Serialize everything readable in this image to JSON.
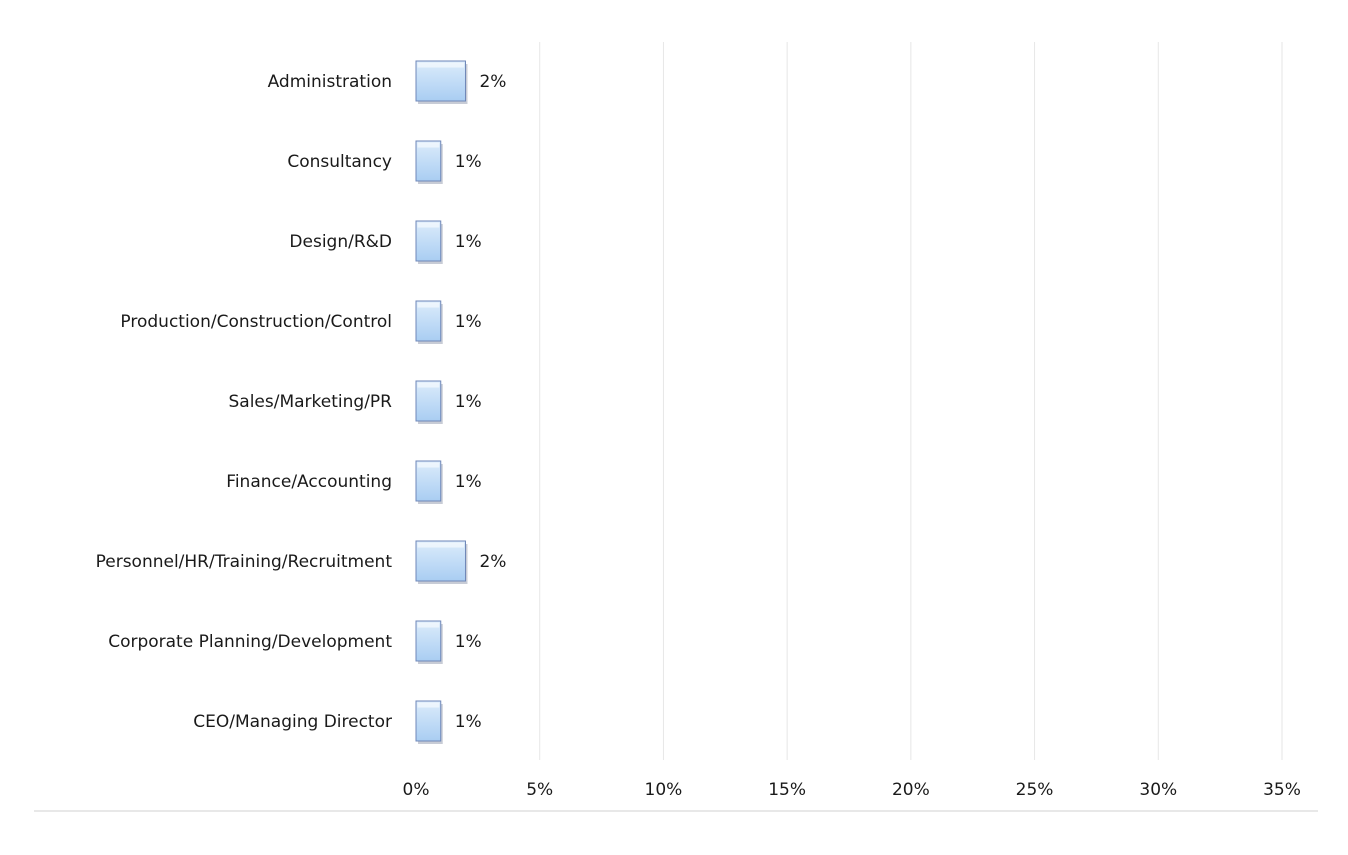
{
  "chart_data": {
    "type": "bar",
    "orientation": "horizontal",
    "categories": [
      "Administration",
      "Consultancy",
      "Design/R&D",
      "Production/Construction/Control",
      "Sales/Marketing/PR",
      "Finance/Accounting",
      "Personnel/HR/Training/Recruitment",
      "Corporate Planning/Development",
      "CEO/Managing Director"
    ],
    "values": [
      2,
      1,
      1,
      1,
      1,
      1,
      2,
      1,
      1
    ],
    "data_labels": [
      "2%",
      "1%",
      "1%",
      "1%",
      "1%",
      "1%",
      "2%",
      "1%",
      "1%"
    ],
    "x_ticks": [
      0,
      5,
      10,
      15,
      20,
      25,
      30,
      35
    ],
    "x_tick_labels": [
      "0%",
      "5%",
      "10%",
      "15%",
      "20%",
      "25%",
      "30%",
      "35%"
    ],
    "xlim": [
      0,
      35
    ],
    "unit": "%",
    "title": "",
    "xlabel": "",
    "ylabel": "",
    "grid": "vertical",
    "legend": "none",
    "colors": {
      "bar_top": "#dcecfb",
      "bar_bottom": "#a9cdf2",
      "bar_edge": "#6f87b8",
      "bar_shadow": "#9aa3b5",
      "gridline": "#e6e6e6",
      "axis": "#d0d0d0"
    }
  }
}
